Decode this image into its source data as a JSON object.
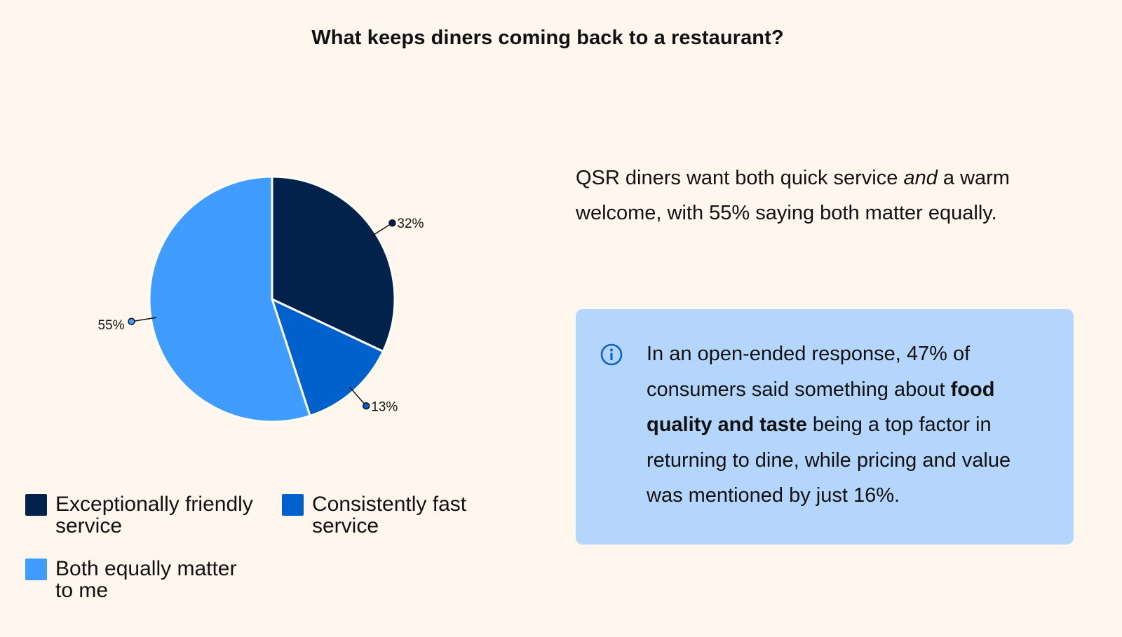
{
  "chart_data": {
    "type": "pie",
    "title": "What keeps diners coming back to a restaurant?",
    "slices": [
      {
        "label": "Exceptionally friendly service",
        "value": 32,
        "value_label": "32%",
        "color": "#02214b"
      },
      {
        "label": "Consistently fast service",
        "value": 13,
        "value_label": "13%",
        "color": "#0061cc"
      },
      {
        "label": "Both equally matter to me",
        "value": 55,
        "value_label": "55%",
        "color": "#409cff"
      }
    ],
    "start_angle_deg": 0,
    "direction": "clockwise",
    "legend_position": "bottom-left"
  },
  "insight": {
    "before": "QSR diners want both quick service ",
    "em": "and",
    "after": " a warm welcome, with 55% saying both matter equally."
  },
  "callout": {
    "icon": "info-icon",
    "before": "In an open-ended response, 47% of consumers said something about ",
    "bold": "food quality and taste",
    "after": " being a top factor in returning to dine, while pricing and value was mentioned by just 16%."
  },
  "colors": {
    "background": "#fff6ed",
    "callout_bg": "#b5d6fc",
    "icon": "#0b63ce"
  }
}
